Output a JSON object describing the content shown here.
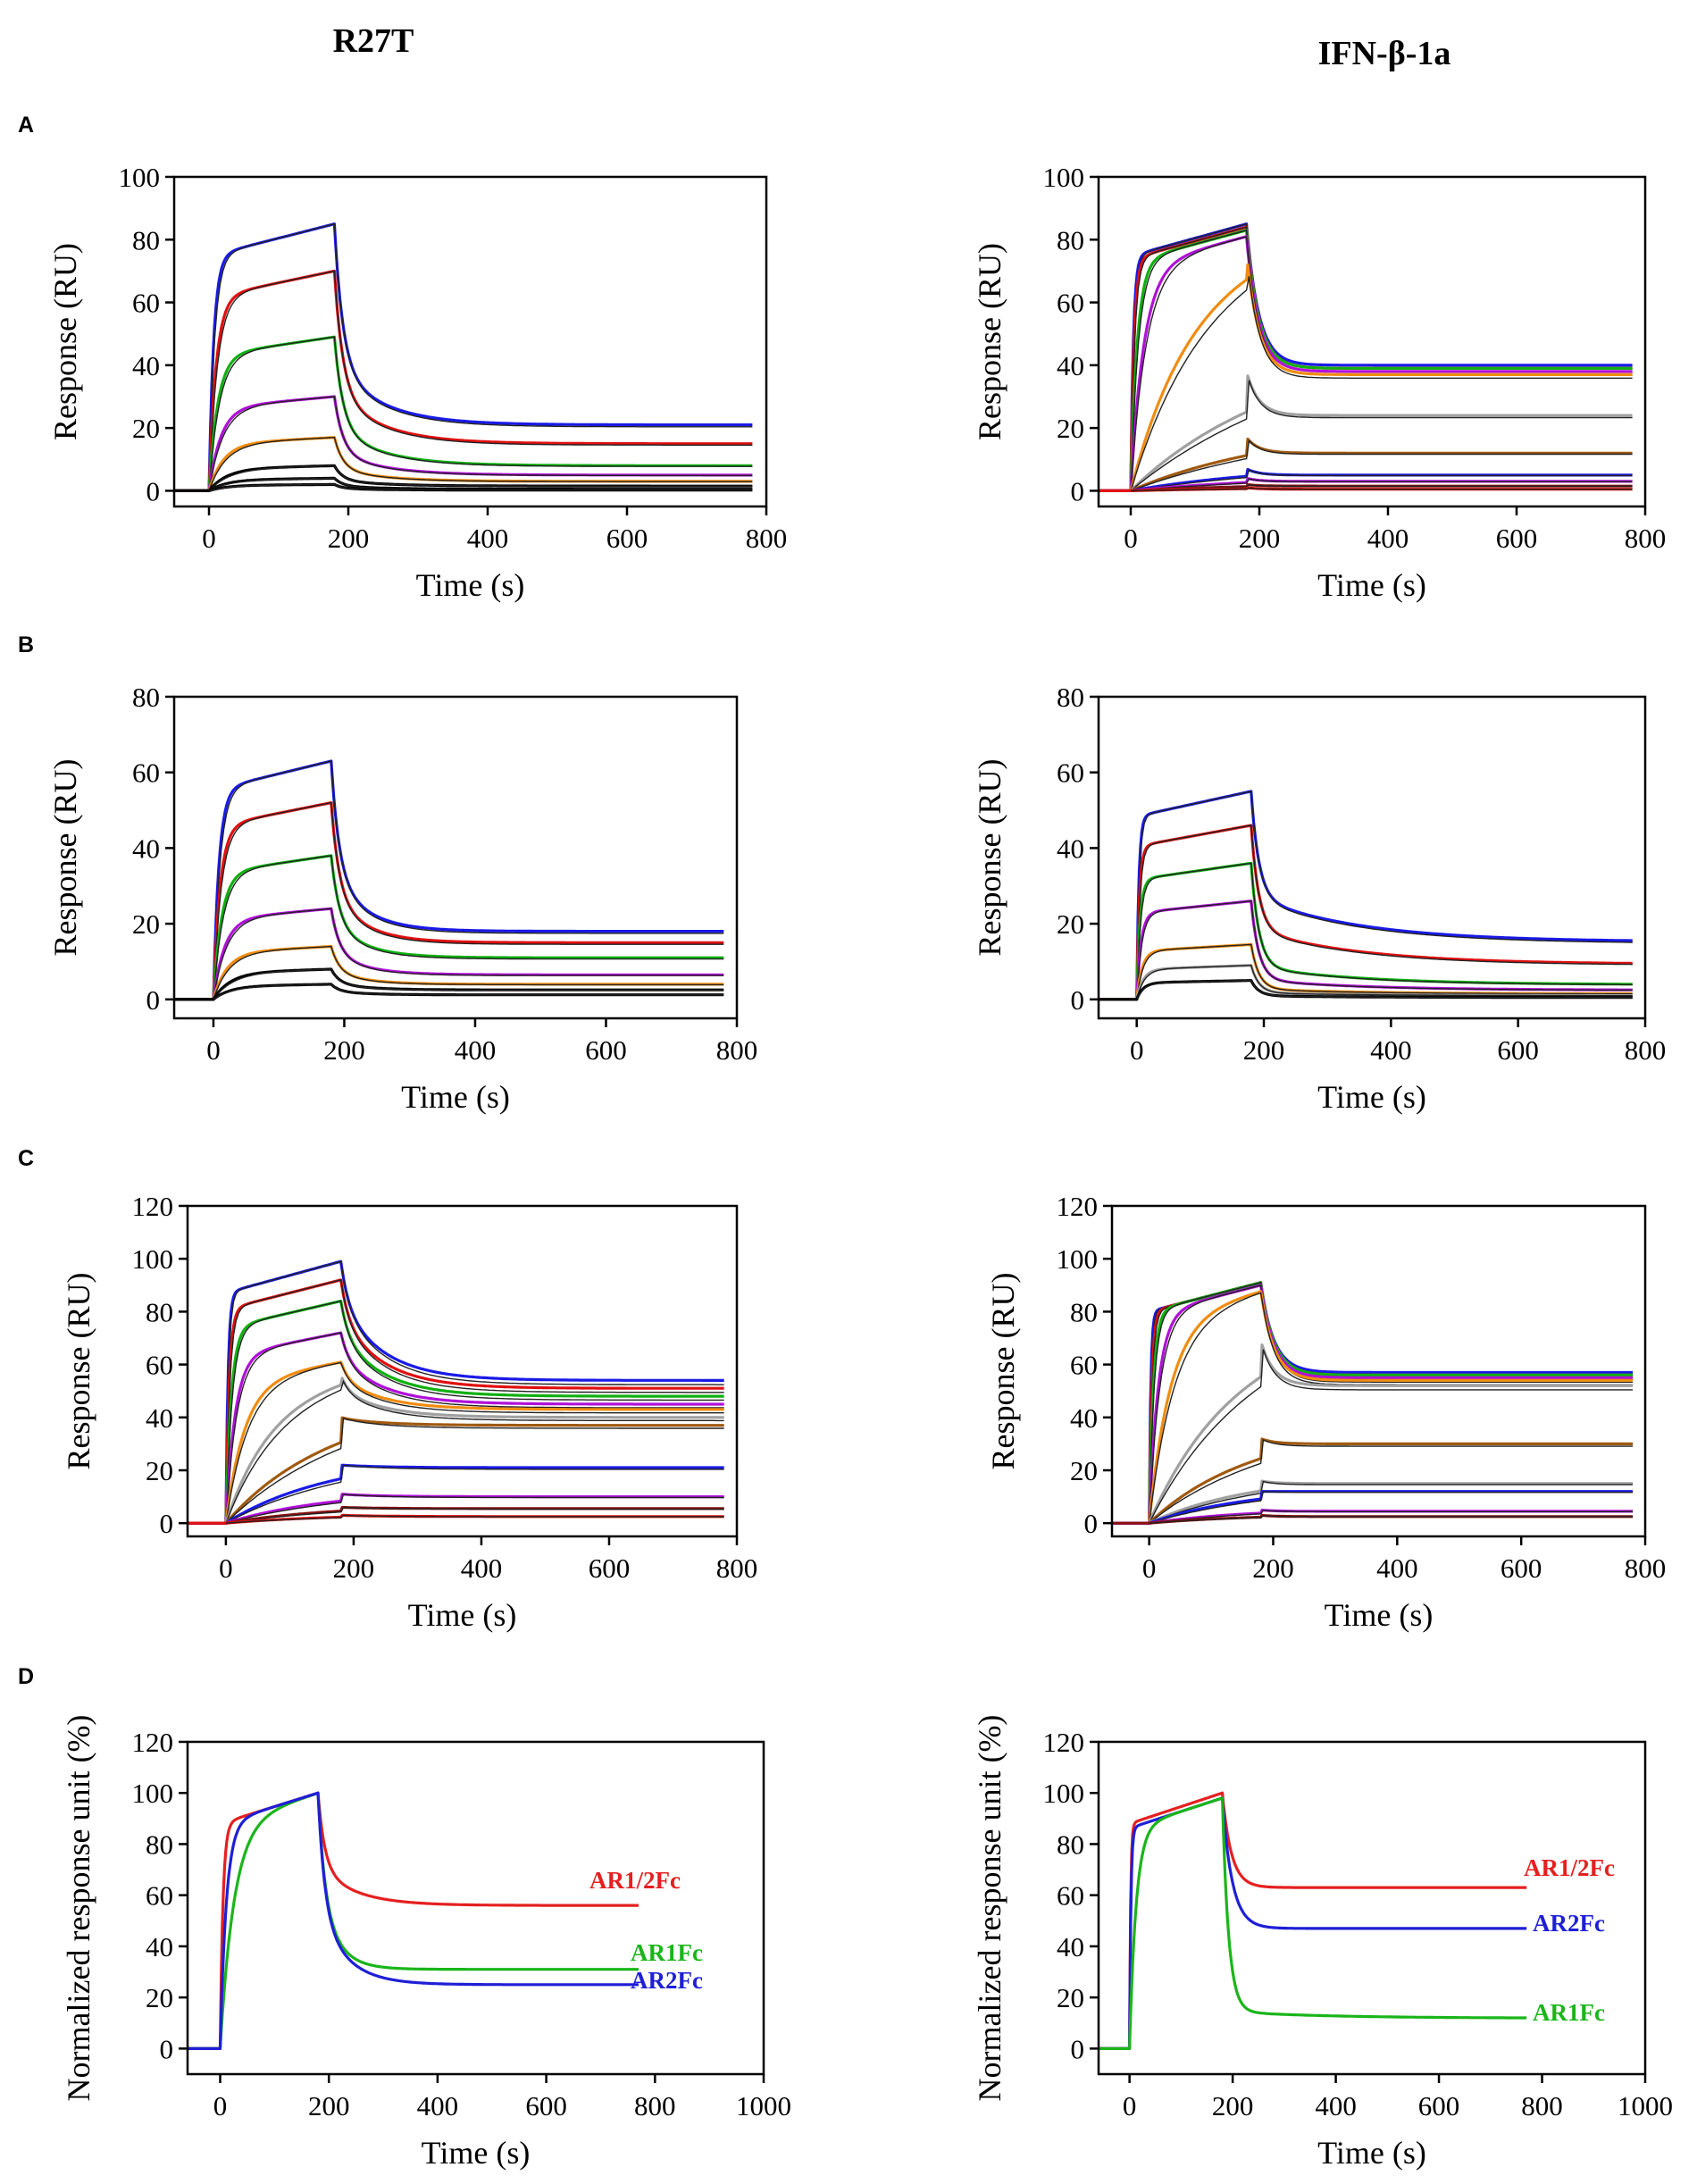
{
  "columns": [
    {
      "title": "R27T"
    },
    {
      "title": "IFN-β-1a"
    }
  ],
  "rows": [
    {
      "letter": "A"
    },
    {
      "letter": "B"
    },
    {
      "letter": "C"
    },
    {
      "letter": "D"
    }
  ],
  "colors": {
    "blue": "#1a1ae6",
    "red": "#e01010",
    "green": "#10b010",
    "purple": "#b010d8",
    "orange": "#f08c10",
    "gray": "#a0a0a0",
    "brown": "#a05a10",
    "darkred": "#8a1010",
    "black": "#000000",
    "fit": "#222222",
    "d_red": "#e52020",
    "d_green": "#1ab51a",
    "d_blue": "#1f1fd6"
  },
  "chart_data": [
    {
      "id": "A-R27T",
      "row": 0,
      "col": 0,
      "type": "line",
      "xlabel": "Time (s)",
      "ylabel": "Response (RU)",
      "xlim": [
        -50,
        800
      ],
      "ylim": [
        -5,
        100
      ],
      "xticks": [
        0,
        200,
        400,
        600,
        800
      ],
      "yticks": [
        0,
        20,
        40,
        60,
        80,
        100
      ],
      "t_on": 0,
      "t_off": 180,
      "series": [
        {
          "color": "blue",
          "peak": 85,
          "end": 21,
          "kon": 0.15,
          "fast": 0.7,
          "curv": 0.15
        },
        {
          "color": "red",
          "peak": 70,
          "end": 15,
          "kon": 0.1,
          "fast": 0.7,
          "curv": 0.15
        },
        {
          "color": "green",
          "peak": 49,
          "end": 8,
          "kon": 0.08,
          "fast": 0.7,
          "curv": 0.15
        },
        {
          "color": "purple",
          "peak": 30,
          "end": 5,
          "kon": 0.06,
          "fast": 0.7,
          "curv": 0.15
        },
        {
          "color": "orange",
          "peak": 17,
          "end": 3,
          "kon": 0.05,
          "fast": 0.7,
          "curv": 0.15
        },
        {
          "color": "black",
          "peak": 8,
          "end": 1.5,
          "kon": 0.04,
          "fast": 0.7,
          "curv": 0.15
        },
        {
          "color": "black",
          "peak": 4,
          "end": 0.5,
          "kon": 0.04,
          "fast": 0.7,
          "curv": 0.15
        },
        {
          "color": "black",
          "peak": 2,
          "end": 0.2,
          "kon": 0.04,
          "fast": 0.7,
          "curv": 0.15
        }
      ]
    },
    {
      "id": "A-IFN",
      "row": 0,
      "col": 1,
      "type": "line",
      "xlabel": "Time (s)",
      "ylabel": "Response (RU)",
      "xlim": [
        -50,
        800
      ],
      "ylim": [
        -5,
        100
      ],
      "xticks": [
        0,
        200,
        400,
        600,
        800
      ],
      "yticks": [
        0,
        20,
        40,
        60,
        80,
        100
      ],
      "t_on": 0,
      "t_off": 180,
      "series": [
        {
          "color": "blue",
          "peak": 85,
          "end": 40,
          "kon": 0.25,
          "fast": 0.1,
          "curv": 0.5
        },
        {
          "color": "red",
          "peak": 84,
          "end": 39,
          "kon": 0.2,
          "fast": 0.1,
          "curv": 0.5
        },
        {
          "color": "green",
          "peak": 83,
          "end": 39,
          "kon": 0.1,
          "fast": 0.1,
          "curv": 0.5
        },
        {
          "color": "purple",
          "peak": 81,
          "end": 38,
          "kon": 0.05,
          "fast": 0.1,
          "curv": 0.5
        },
        {
          "color": "orange",
          "peak": 76,
          "end": 37,
          "kon": 0.012,
          "fast": 0.1,
          "curv": 0.5
        },
        {
          "color": "gray",
          "peak": 38,
          "end": 24,
          "kon": 0.006,
          "fast": 0.1,
          "curv": 0.5
        },
        {
          "color": "brown",
          "peak": 17,
          "end": 12,
          "kon": 0.006,
          "fast": 0.1,
          "curv": 0.5
        },
        {
          "color": "blue",
          "peak": 7,
          "end": 5,
          "kon": 0.006,
          "fast": 0.1,
          "curv": 0.5
        },
        {
          "color": "purple",
          "peak": 4,
          "end": 3,
          "kon": 0.006,
          "fast": 0.1,
          "curv": 0.5
        },
        {
          "color": "darkred",
          "peak": 2,
          "end": 1.5,
          "kon": 0.006,
          "fast": 0.1,
          "curv": 0.5
        },
        {
          "color": "red",
          "peak": 1,
          "end": 0.5,
          "kon": 0.006,
          "fast": 0.1,
          "curv": 0.5
        }
      ]
    },
    {
      "id": "B-R27T",
      "row": 1,
      "col": 0,
      "type": "line",
      "xlabel": "Time (s)",
      "ylabel": "Response (RU)",
      "xlim": [
        -60,
        800
      ],
      "ylim": [
        -5,
        80
      ],
      "xticks": [
        0,
        200,
        400,
        600,
        800
      ],
      "yticks": [
        0,
        20,
        40,
        60,
        80
      ],
      "t_on": 0,
      "t_off": 180,
      "series": [
        {
          "color": "blue",
          "peak": 63,
          "end": 18,
          "kon": 0.12,
          "fast": 0.65,
          "curv": 0.2
        },
        {
          "color": "red",
          "peak": 52,
          "end": 15,
          "kon": 0.1,
          "fast": 0.65,
          "curv": 0.2
        },
        {
          "color": "green",
          "peak": 38,
          "end": 11,
          "kon": 0.08,
          "fast": 0.65,
          "curv": 0.2
        },
        {
          "color": "purple",
          "peak": 24,
          "end": 6.5,
          "kon": 0.06,
          "fast": 0.65,
          "curv": 0.2
        },
        {
          "color": "orange",
          "peak": 14,
          "end": 4,
          "kon": 0.05,
          "fast": 0.65,
          "curv": 0.2
        },
        {
          "color": "black",
          "peak": 8,
          "end": 2.5,
          "kon": 0.04,
          "fast": 0.65,
          "curv": 0.2
        },
        {
          "color": "black",
          "peak": 4,
          "end": 1.2,
          "kon": 0.04,
          "fast": 0.65,
          "curv": 0.2
        }
      ]
    },
    {
      "id": "B-IFN",
      "row": 1,
      "col": 1,
      "type": "line",
      "xlabel": "Time (s)",
      "ylabel": "Response (RU)",
      "xlim": [
        -60,
        800
      ],
      "ylim": [
        -5,
        80
      ],
      "xticks": [
        0,
        200,
        400,
        600,
        800
      ],
      "yticks": [
        0,
        20,
        40,
        60,
        80
      ],
      "t_on": 0,
      "t_off": 180,
      "series": [
        {
          "color": "blue",
          "peak": 55,
          "end": 15.5,
          "kon": 0.3,
          "fast": 0.7,
          "curv": 0.06
        },
        {
          "color": "red",
          "peak": 46,
          "end": 9.5,
          "kon": 0.25,
          "fast": 0.75,
          "curv": 0.06
        },
        {
          "color": "green",
          "peak": 36,
          "end": 4,
          "kon": 0.2,
          "fast": 0.85,
          "curv": 0.06
        },
        {
          "color": "purple",
          "peak": 26,
          "end": 2.5,
          "kon": 0.15,
          "fast": 0.88,
          "curv": 0.06
        },
        {
          "color": "orange",
          "peak": 14.5,
          "end": 1.5,
          "kon": 0.12,
          "fast": 0.9,
          "curv": 0.06
        },
        {
          "color": "gray",
          "peak": 9,
          "end": 1,
          "kon": 0.1,
          "fast": 0.9,
          "curv": 0.06
        },
        {
          "color": "black",
          "peak": 5,
          "end": 0.5,
          "kon": 0.1,
          "fast": 0.9,
          "curv": 0.06
        }
      ]
    },
    {
      "id": "C-R27T",
      "row": 2,
      "col": 0,
      "type": "line",
      "xlabel": "Time (s)",
      "ylabel": "Response (RU)",
      "xlim": [
        -60,
        800
      ],
      "ylim": [
        -5,
        120
      ],
      "xticks": [
        0,
        200,
        400,
        600,
        800
      ],
      "yticks": [
        0,
        20,
        40,
        60,
        80,
        100,
        120
      ],
      "t_on": 0,
      "t_off": 180,
      "series": [
        {
          "color": "blue",
          "peak": 99,
          "end": 54,
          "kon": 0.3,
          "fast": 0.35,
          "curv": 0.15
        },
        {
          "color": "red",
          "peak": 92,
          "end": 51,
          "kon": 0.2,
          "fast": 0.35,
          "curv": 0.15
        },
        {
          "color": "green",
          "peak": 84,
          "end": 48,
          "kon": 0.12,
          "fast": 0.35,
          "curv": 0.15
        },
        {
          "color": "purple",
          "peak": 72,
          "end": 45,
          "kon": 0.07,
          "fast": 0.35,
          "curv": 0.15
        },
        {
          "color": "orange",
          "peak": 61,
          "end": 43,
          "kon": 0.035,
          "fast": 0.35,
          "curv": 0.15
        },
        {
          "color": "gray",
          "peak": 56,
          "end": 40,
          "kon": 0.015,
          "fast": 0.35,
          "curv": 0.15
        },
        {
          "color": "brown",
          "peak": 40,
          "end": 37,
          "kon": 0.008,
          "fast": 0.1,
          "curv": 0.15
        },
        {
          "color": "blue",
          "peak": 22,
          "end": 21,
          "kon": 0.008,
          "fast": 0.05,
          "curv": 0.15
        },
        {
          "color": "purple",
          "peak": 11,
          "end": 10,
          "kon": 0.008,
          "fast": 0.05,
          "curv": 0.15
        },
        {
          "color": "darkred",
          "peak": 6,
          "end": 5.5,
          "kon": 0.008,
          "fast": 0.05,
          "curv": 0.15
        },
        {
          "color": "red",
          "peak": 3,
          "end": 2.5,
          "kon": 0.008,
          "fast": 0.05,
          "curv": 0.15
        }
      ]
    },
    {
      "id": "C-IFN",
      "row": 2,
      "col": 1,
      "type": "line",
      "xlabel": "Time (s)",
      "ylabel": "Response (RU)",
      "xlim": [
        -60,
        800
      ],
      "ylim": [
        -5,
        120
      ],
      "xticks": [
        0,
        200,
        400,
        600,
        800
      ],
      "yticks": [
        0,
        20,
        40,
        60,
        80,
        100,
        120
      ],
      "t_on": 0,
      "t_off": 180,
      "series": [
        {
          "color": "blue",
          "peak": 91,
          "end": 57,
          "kon": 0.4,
          "fast": 0.1,
          "curv": 0.45
        },
        {
          "color": "red",
          "peak": 91,
          "end": 56,
          "kon": 0.25,
          "fast": 0.1,
          "curv": 0.45
        },
        {
          "color": "green",
          "peak": 91,
          "end": 56,
          "kon": 0.15,
          "fast": 0.1,
          "curv": 0.45
        },
        {
          "color": "purple",
          "peak": 90,
          "end": 55,
          "kon": 0.07,
          "fast": 0.1,
          "curv": 0.45
        },
        {
          "color": "orange",
          "peak": 88,
          "end": 54,
          "kon": 0.03,
          "fast": 0.1,
          "curv": 0.45
        },
        {
          "color": "gray",
          "peak": 69,
          "end": 52,
          "kon": 0.009,
          "fast": 0.1,
          "curv": 0.45
        },
        {
          "color": "brown",
          "peak": 32,
          "end": 30,
          "kon": 0.008,
          "fast": 0.05,
          "curv": 0.45
        },
        {
          "color": "gray",
          "peak": 16,
          "end": 15,
          "kon": 0.008,
          "fast": 0.05,
          "curv": 0.45
        },
        {
          "color": "blue",
          "peak": 12,
          "end": 12,
          "kon": 0.008,
          "fast": 0.05,
          "curv": 0.45
        },
        {
          "color": "purple",
          "peak": 5,
          "end": 4.5,
          "kon": 0.008,
          "fast": 0.05,
          "curv": 0.45
        },
        {
          "color": "darkred",
          "peak": 3,
          "end": 2.5,
          "kon": 0.008,
          "fast": 0.05,
          "curv": 0.45
        }
      ]
    },
    {
      "id": "D-R27T",
      "row": 3,
      "col": 0,
      "type": "line",
      "xlabel": "Time (s)",
      "ylabel": "Normalized response unit (%)",
      "xlim": [
        -60,
        1000
      ],
      "ylim": [
        -10,
        120
      ],
      "xticks": [
        0,
        200,
        400,
        600,
        800,
        1000
      ],
      "yticks": [
        0,
        20,
        40,
        60,
        80,
        100,
        120
      ],
      "t_on": 0,
      "t_off": 180,
      "t_end": 770,
      "series": [
        {
          "color": "d_red",
          "name": "AR1/2Fc",
          "peak": 100,
          "end": 56,
          "kon": 0.2,
          "fast": 0.65,
          "curv": 0.15
        },
        {
          "color": "d_green",
          "name": "AR1Fc",
          "peak": 100,
          "end": 31,
          "kon": 0.04,
          "fast": 0.55,
          "curv": 0.3
        },
        {
          "color": "d_blue",
          "name": "AR2Fc",
          "peak": 100,
          "end": 25,
          "kon": 0.09,
          "fast": 0.6,
          "curv": 0.2
        }
      ]
    },
    {
      "id": "D-IFN",
      "row": 3,
      "col": 1,
      "type": "line",
      "xlabel": "Time (s)",
      "ylabel": "Normalized response unit (%)",
      "xlim": [
        -60,
        1000
      ],
      "ylim": [
        -10,
        120
      ],
      "xticks": [
        0,
        200,
        400,
        600,
        800,
        1000
      ],
      "yticks": [
        0,
        20,
        40,
        60,
        80,
        100,
        120
      ],
      "t_on": 0,
      "t_off": 180,
      "t_end": 770,
      "series": [
        {
          "color": "d_red",
          "name": "AR1/2Fc",
          "peak": 100,
          "end": 63,
          "kon": 0.5,
          "fast": 0.1,
          "curv": 0.55
        },
        {
          "color": "d_blue",
          "name": "AR2Fc",
          "peak": 98,
          "end": 47,
          "kon": 0.4,
          "fast": 0.1,
          "curv": 0.5
        },
        {
          "color": "d_green",
          "name": "AR1Fc",
          "peak": 98,
          "end": 12,
          "kon": 0.08,
          "fast": 0.97,
          "curv": 0.05
        }
      ]
    }
  ]
}
